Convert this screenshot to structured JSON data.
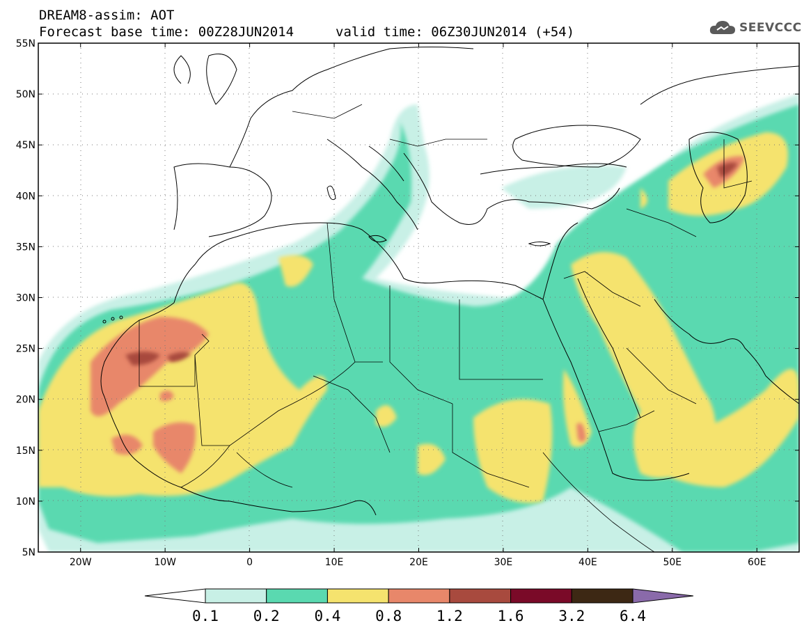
{
  "header": {
    "title": "DREAM8-assim: AOT",
    "base_time": "Forecast base time: 00Z28JUN2014",
    "valid_time": "valid time: 06Z30JUN2014 (+54)",
    "logo_text": "SEEVCCC",
    "logo_icon": "cloud-icon"
  },
  "map": {
    "projection": "lat-lon",
    "lon_range": [
      -25,
      65
    ],
    "lat_range": [
      5,
      55
    ],
    "lat_labels": [
      "5N",
      "10N",
      "15N",
      "20N",
      "25N",
      "30N",
      "35N",
      "40N",
      "45N",
      "50N",
      "55N"
    ],
    "lon_labels": [
      "20W",
      "10W",
      "0",
      "10E",
      "20E",
      "30E",
      "40E",
      "50E",
      "60E"
    ],
    "variable": "Aerosol Optical Thickness",
    "grid": "dotted"
  },
  "colorbar": {
    "levels": [
      "0.1",
      "0.2",
      "0.4",
      "0.8",
      "1.2",
      "1.6",
      "3.2",
      "6.4"
    ],
    "colors": [
      "#ffffff",
      "#c8f0e6",
      "#5ad9b0",
      "#f5e36e",
      "#e8876a",
      "#a84a3e",
      "#7a0a28",
      "#3d2814",
      "#8a6aaa"
    ]
  }
}
